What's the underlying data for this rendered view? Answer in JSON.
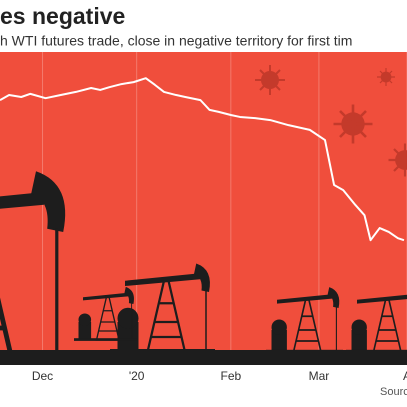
{
  "chart_data": {
    "type": "line",
    "title": "es negative",
    "subtitle": "h WTI futures trade, close in negative territory for first tim",
    "source": "Sourc",
    "background": "#f04e3c",
    "grid": true,
    "xlim": [
      16,
      150
    ],
    "xticks": [
      {
        "value": 30,
        "label": "Dec"
      },
      {
        "value": 61,
        "label": "'20"
      },
      {
        "value": 92,
        "label": "Feb"
      },
      {
        "value": 121,
        "label": "Mar"
      },
      {
        "value": 150,
        "label": "A"
      }
    ],
    "ylim": [
      -12,
      68
    ],
    "x": [
      16,
      19,
      23,
      26,
      31,
      36,
      41,
      46,
      49,
      52,
      56,
      60,
      64,
      67,
      70,
      74,
      77,
      82,
      85,
      88,
      92,
      95,
      100,
      105,
      111,
      118,
      123,
      126,
      129,
      133,
      136,
      138,
      141,
      144,
      147,
      149
    ],
    "series": [
      {
        "color": "#ffffff",
        "values": [
          55.7,
          57.0,
          56.5,
          57.3,
          56.2,
          57.0,
          57.8,
          58.8,
          58.3,
          59.0,
          59.8,
          60.3,
          61.3,
          59.6,
          57.8,
          57.0,
          56.5,
          55.7,
          53.2,
          52.7,
          51.9,
          51.4,
          51.1,
          50.6,
          49.3,
          48.1,
          45.5,
          34.0,
          32.7,
          28.9,
          26.3,
          19.9,
          23.0,
          22.0,
          20.4,
          19.9
        ]
      }
    ]
  }
}
